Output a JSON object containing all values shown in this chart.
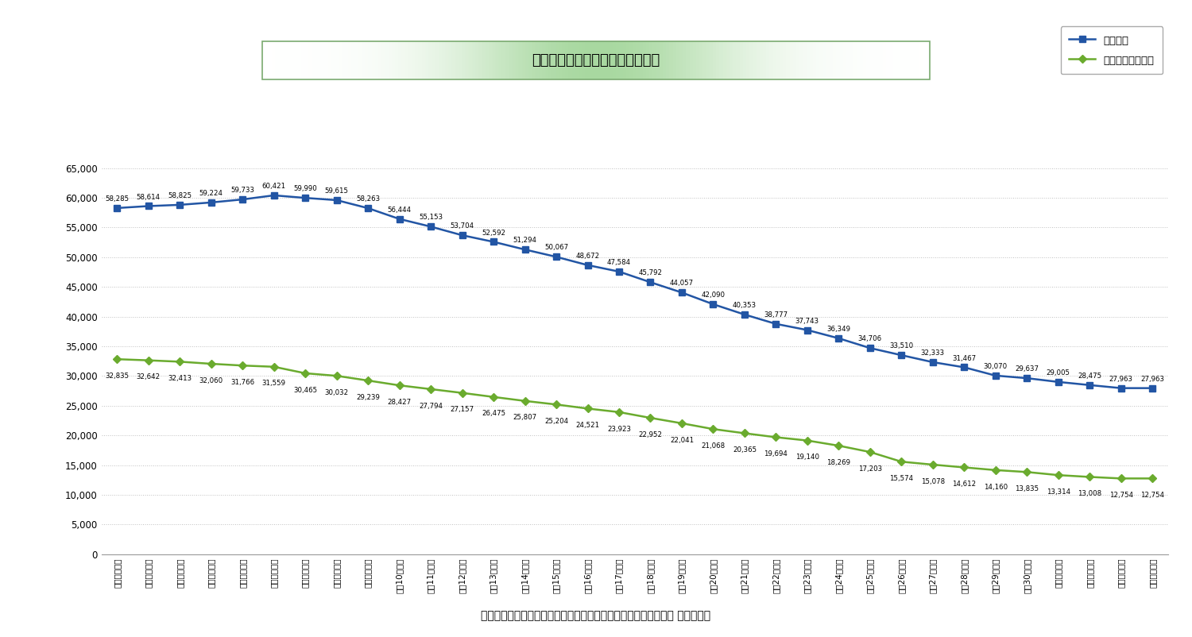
{
  "title": "揮発油販売業者・給油所数の推移",
  "x_labels": [
    "平成元年度末",
    "平成２年度末",
    "平成３年度末",
    "平成４年度末",
    "平成５年度末",
    "平成６年度末",
    "平成７年度末",
    "平成８年度末",
    "平成９年度末",
    "平成10年度末",
    "平成11年度末",
    "平成12年度末",
    "平成13年度末",
    "平成14年度末",
    "平成15年度末",
    "平成16年度末",
    "平成17年度末",
    "平成18年度末",
    "平成19年度末",
    "平成20年度末",
    "平成21年度末",
    "平成22年度末",
    "平成23年度末",
    "平成24年度末",
    "平成25年度末",
    "平成26年度末",
    "平成27年度末",
    "平成28年度末",
    "平成29年度末",
    "平成30年度末",
    "令和元年度末",
    "令和２年度末",
    "令和３年度末",
    "令和４年度末"
  ],
  "blue_values": [
    58285,
    58614,
    58825,
    59224,
    59733,
    60421,
    59990,
    59615,
    58263,
    56444,
    55153,
    53704,
    52592,
    51294,
    50067,
    48672,
    47584,
    45792,
    44057,
    42090,
    40353,
    38777,
    37743,
    36349,
    34706,
    33510,
    32333,
    31467,
    30070,
    29637,
    29005,
    28475,
    27963,
    27963
  ],
  "green_values": [
    32835,
    32642,
    32413,
    32060,
    31766,
    31559,
    30465,
    30032,
    29239,
    28427,
    27794,
    27157,
    26475,
    25807,
    25204,
    24521,
    23923,
    22952,
    22041,
    21068,
    20365,
    19694,
    19140,
    18269,
    17203,
    15574,
    15078,
    14612,
    14160,
    13835,
    13314,
    13008,
    12754,
    12754
  ],
  "blue_label": "給油所数",
  "green_label": "揮発油販売業者数",
  "y_max": 65000,
  "y_min": 0,
  "y_step": 5000,
  "source_text": "出典：揮発油販売業者数及び給油所数の推移（登録ベース）　｜ 経済産業省",
  "blue_color": "#2255A4",
  "green_color": "#6AAB2E",
  "bg_color": "#FFFFFF",
  "title_gradient_colors": [
    "#FFFFFF",
    "#A8D8A0",
    "#A8D8A0",
    "#FFFFFF"
  ],
  "grid_color": "#C0C0C0",
  "grid_style": "dotted"
}
